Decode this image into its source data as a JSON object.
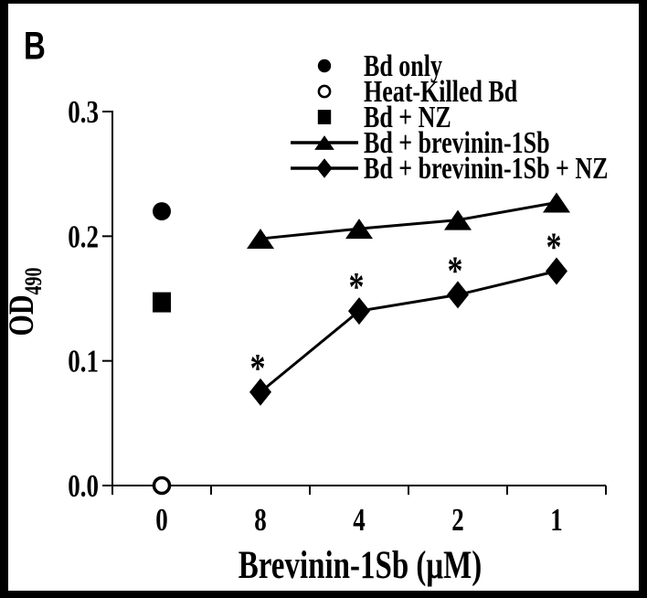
{
  "panel_label": "B",
  "colors": {
    "foreground": "#000000",
    "background": "#ffffff"
  },
  "chart_data": {
    "type": "line",
    "title": "",
    "xlabel": "Brevinin-1Sb (μM)",
    "ylabel": "OD",
    "ylabel_sub": "490",
    "ylim": [
      0,
      0.3
    ],
    "yticks": [
      0.0,
      0.1,
      0.2,
      0.3
    ],
    "ytick_labels": [
      "0.0",
      "0.1",
      "0.2",
      "0.3"
    ],
    "categories": [
      "0",
      "8",
      "4",
      "2",
      "1"
    ],
    "grid": false,
    "legend_position": "top-right",
    "significance_symbol": "*",
    "series": [
      {
        "name": "Bd only",
        "marker": "filled-circle",
        "line": false,
        "points": [
          {
            "x": "0",
            "y": 0.22
          }
        ]
      },
      {
        "name": "Heat-Killed Bd",
        "marker": "open-circle",
        "line": false,
        "points": [
          {
            "x": "0",
            "y": 0.0
          }
        ]
      },
      {
        "name": "Bd + NZ",
        "marker": "filled-square",
        "line": false,
        "points": [
          {
            "x": "0",
            "y": 0.147
          }
        ]
      },
      {
        "name": "Bd + brevinin-1Sb",
        "marker": "filled-triangle",
        "line": true,
        "points": [
          {
            "x": "8",
            "y": 0.198
          },
          {
            "x": "4",
            "y": 0.206
          },
          {
            "x": "2",
            "y": 0.213
          },
          {
            "x": "1",
            "y": 0.227
          }
        ]
      },
      {
        "name": "Bd + brevinin-1Sb + NZ",
        "marker": "filled-diamond",
        "line": true,
        "points": [
          {
            "x": "8",
            "y": 0.075,
            "mark": "*"
          },
          {
            "x": "4",
            "y": 0.14,
            "mark": "*"
          },
          {
            "x": "2",
            "y": 0.153,
            "mark": "*"
          },
          {
            "x": "1",
            "y": 0.172,
            "mark": "*"
          }
        ]
      }
    ]
  }
}
